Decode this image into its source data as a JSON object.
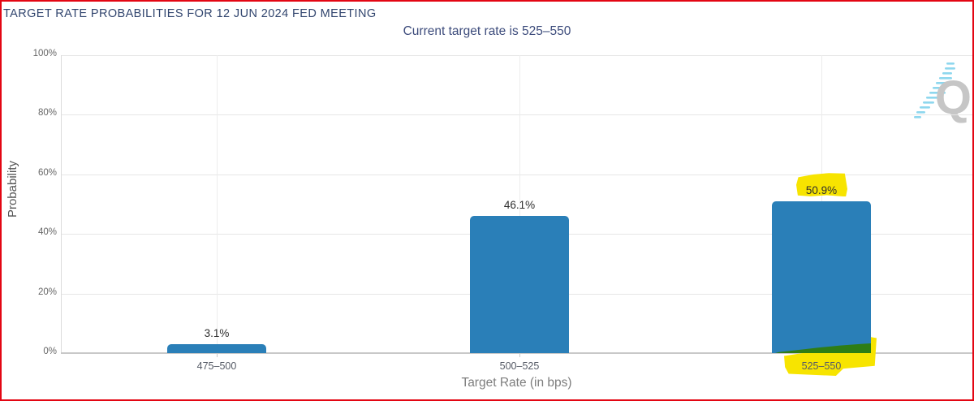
{
  "frame": {
    "border_color": "#e30613"
  },
  "watermark": {
    "letter": "Q"
  },
  "chart_data": {
    "type": "bar",
    "title": "TARGET RATE PROBABILITIES FOR 12 JUN 2024 FED MEETING",
    "subtitle": "Current target rate is 525–550",
    "xlabel": "Target Rate (in bps)",
    "ylabel": "Probability",
    "categories": [
      "475–500",
      "500–525",
      "525–550"
    ],
    "values": [
      3.1,
      46.1,
      50.9
    ],
    "value_labels": [
      "3.1%",
      "46.1%",
      "50.9%"
    ],
    "ylim": [
      0,
      100
    ],
    "ytick_values": [
      0,
      20,
      40,
      60,
      80,
      100
    ],
    "ytick_labels": [
      "0%",
      "20%",
      "40%",
      "60%",
      "80%",
      "100%"
    ],
    "grid": true,
    "legend": "none",
    "bar_color": "#2a7fb8",
    "annotations": {
      "highlighted_value_label": "50.9%",
      "highlighted_category": "525–550",
      "highlight_color": "#f7e400",
      "green_wedge_color": "#2e7d15"
    }
  }
}
